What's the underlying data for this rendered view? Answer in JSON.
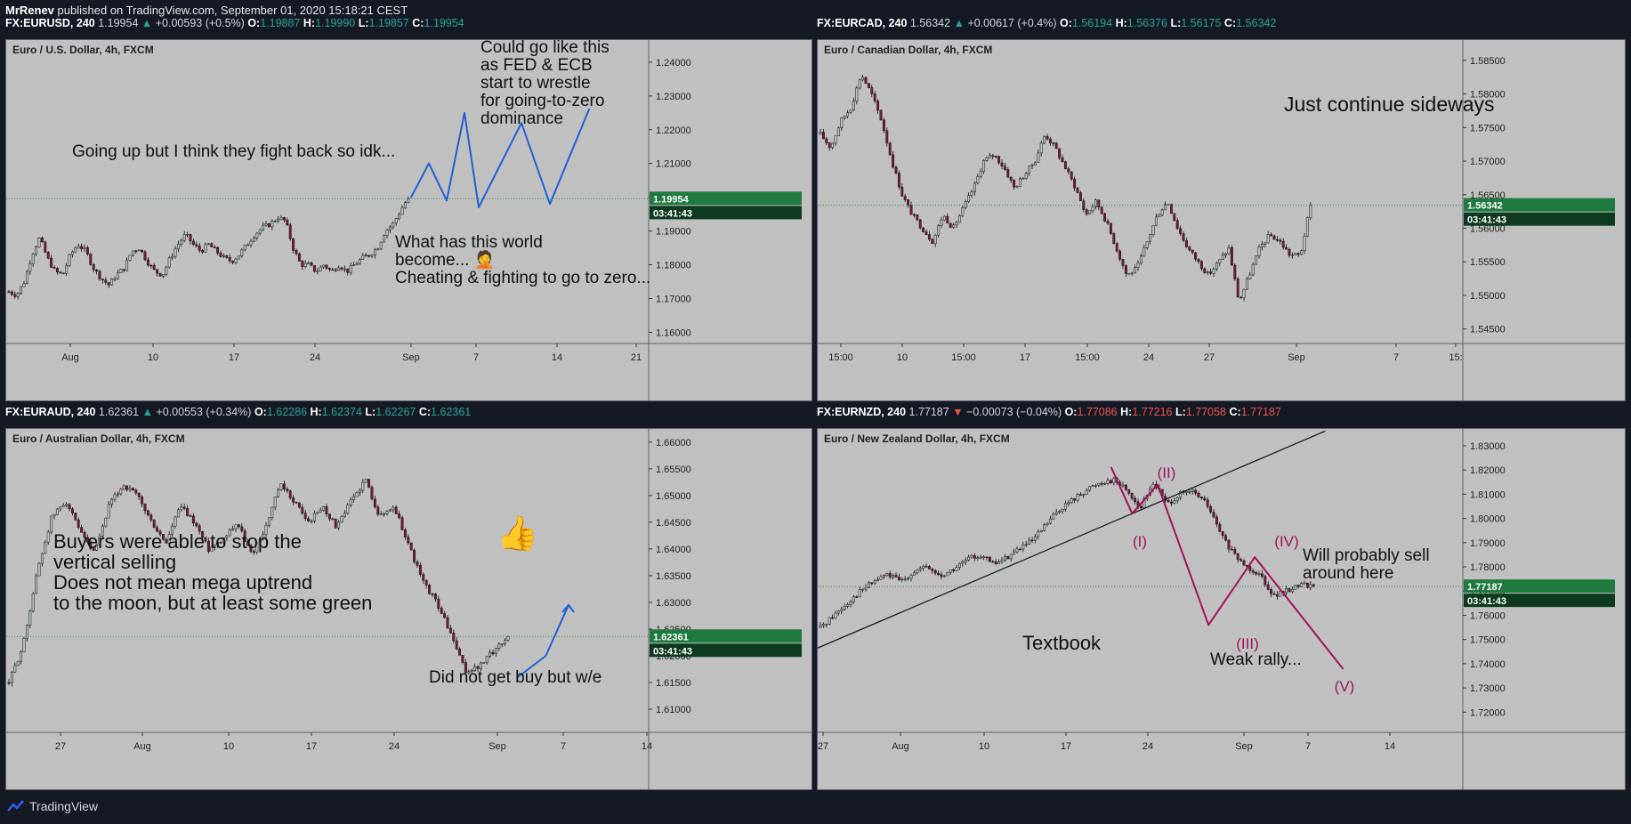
{
  "top": {
    "author": "MrRenev",
    "published_text": "published on TradingView.com, September 01, 2020 15:18:21 CEST"
  },
  "footer": {
    "brand": "TradingView",
    "logo_icon": "tradingview-cloud-icon"
  },
  "colors": {
    "up": "#26a69a",
    "down": "#ef5350",
    "plot_bg": "#c0c0c0",
    "price_badge": "#1e7a3e",
    "drawing_blue": "#1f5fd6",
    "drawing_magenta": "#a0135a"
  },
  "panels": [
    {
      "header": {
        "symbol": "FX:EURUSD, 240",
        "last": "1.19954",
        "dir": "up",
        "change": "+0.00593 (+0.5%)",
        "o": "1.19887",
        "h": "1.19990",
        "l": "1.19857",
        "c": "1.19954"
      },
      "title": "Euro / U.S. Dollar, 4h, FXCM",
      "price_label": "1.19954",
      "timer": "03:41:43",
      "annotations": [
        "Going up but I think they fight back so idk...",
        "Could go like this",
        "as FED & ECB",
        "start to wrestle",
        "for going-to-zero",
        "dominance",
        "What has this world",
        "become... 🤦",
        "Cheating & fighting to go to zero..."
      ]
    },
    {
      "header": {
        "symbol": "FX:EURCAD, 240",
        "last": "1.56342",
        "dir": "up",
        "change": "+0.00617 (+0.4%)",
        "o": "1.56194",
        "h": "1.56376",
        "l": "1.56175",
        "c": "1.56342"
      },
      "title": "Euro / Canadian Dollar, 4h, FXCM",
      "price_label": "1.56342",
      "timer": "03:41:43",
      "annotations": [
        "Just continue sideways"
      ]
    },
    {
      "header": {
        "symbol": "FX:EURAUD, 240",
        "last": "1.62361",
        "dir": "up",
        "change": "+0.00553 (+0.34%)",
        "o": "1.62286",
        "h": "1.62374",
        "l": "1.62267",
        "c": "1.62361"
      },
      "title": "Euro / Australian Dollar, 4h, FXCM",
      "price_label": "1.62361",
      "timer": "03:41:43",
      "annotations": [
        "Buyers were able to stop the",
        "vertical selling",
        "Does not mean mega uptrend",
        "to the moon, but at least some green",
        "Did not get buy but w/e"
      ],
      "emoji": "👍"
    },
    {
      "header": {
        "symbol": "FX:EURNZD, 240",
        "last": "1.77187",
        "dir": "down",
        "change": "−0.00073 (−0.04%)",
        "o": "1.77086",
        "h": "1.77216",
        "l": "1.77058",
        "c": "1.77187"
      },
      "title": "Euro / New Zealand Dollar, 4h, FXCM",
      "price_label": "1.77187",
      "timer": "03:41:43",
      "annotations": [
        "Textbook",
        "Will probably sell",
        "around here",
        "Weak rally..."
      ],
      "wave_labels": [
        "(I)",
        "(II)",
        "(III)",
        "(IV)",
        "(V)"
      ]
    }
  ],
  "chart_data": [
    {
      "type": "candlestick",
      "symbol": "EURUSD",
      "title": "Euro / U.S. Dollar, 4h, FXCM",
      "y_ticks": [
        "1.24000",
        "1.23000",
        "1.22000",
        "1.21000",
        "1.20000",
        "1.19000",
        "1.18000",
        "1.17000",
        "1.16000"
      ],
      "ylim": [
        1.158,
        1.2455
      ],
      "x_ticks": [
        "Aug",
        "10",
        "17",
        "24",
        "Sep",
        "7",
        "14",
        "21"
      ],
      "close_path": [
        1.172,
        1.171,
        1.175,
        1.183,
        1.188,
        1.182,
        1.178,
        1.177,
        1.183,
        1.186,
        1.184,
        1.179,
        1.176,
        1.174,
        1.177,
        1.179,
        1.184,
        1.185,
        1.181,
        1.178,
        1.177,
        1.182,
        1.186,
        1.189,
        1.186,
        1.184,
        1.186,
        1.184,
        1.182,
        1.181,
        1.183,
        1.186,
        1.189,
        1.191,
        1.192,
        1.194,
        1.193,
        1.185,
        1.18,
        1.18,
        1.178,
        1.18,
        1.178,
        1.18,
        1.178,
        1.18,
        1.182,
        1.183,
        1.185,
        1.19,
        1.192,
        1.196,
        1.2
      ],
      "last": 1.19954,
      "projection": [
        [
          0,
          1.2
        ],
        [
          0.1,
          1.21
        ],
        [
          0.2,
          1.199
        ],
        [
          0.3,
          1.225
        ],
        [
          0.38,
          1.197
        ],
        [
          0.62,
          1.222
        ],
        [
          0.78,
          1.198
        ],
        [
          1.0,
          1.226
        ]
      ]
    },
    {
      "type": "candlestick",
      "symbol": "EURCAD",
      "title": "Euro / Canadian Dollar, 4h, FXCM",
      "y_ticks": [
        "1.58500",
        "1.58000",
        "1.57500",
        "1.57000",
        "1.56500",
        "1.56000",
        "1.55500",
        "1.55000",
        "1.54500"
      ],
      "ylim": [
        1.5435,
        1.5875
      ],
      "x_ticks": [
        "15:00",
        "10",
        "15:00",
        "17",
        "15:00",
        "24",
        "27",
        "Sep",
        "7",
        "15:"
      ],
      "close_path": [
        1.574,
        1.572,
        1.576,
        1.578,
        1.583,
        1.58,
        1.576,
        1.57,
        1.565,
        1.562,
        1.56,
        1.558,
        1.562,
        1.56,
        1.563,
        1.566,
        1.57,
        1.571,
        1.569,
        1.566,
        1.568,
        1.57,
        1.574,
        1.572,
        1.569,
        1.566,
        1.562,
        1.564,
        1.561,
        1.557,
        1.553,
        1.554,
        1.558,
        1.562,
        1.564,
        1.56,
        1.557,
        1.555,
        1.553,
        1.555,
        1.557,
        1.549,
        1.553,
        1.557,
        1.559,
        1.558,
        1.556,
        1.556,
        1.5634
      ],
      "last": 1.56342
    },
    {
      "type": "candlestick",
      "symbol": "EURAUD",
      "title": "Euro / Australian Dollar, 4h, FXCM",
      "y_ticks": [
        "1.66000",
        "1.65500",
        "1.65000",
        "1.64500",
        "1.64000",
        "1.63500",
        "1.63000",
        "1.62500",
        "1.62000",
        "1.61500",
        "1.61000"
      ],
      "ylim": [
        1.6065,
        1.6618
      ],
      "x_ticks": [
        "27",
        "Aug",
        "10",
        "17",
        "24",
        "Sep",
        "7",
        "14"
      ],
      "close_path": [
        1.615,
        1.622,
        1.636,
        1.646,
        1.649,
        1.643,
        1.639,
        1.648,
        1.652,
        1.65,
        1.645,
        1.641,
        1.648,
        1.645,
        1.64,
        1.642,
        1.645,
        1.639,
        1.644,
        1.652,
        1.649,
        1.645,
        1.648,
        1.644,
        1.649,
        1.653,
        1.646,
        1.648,
        1.641,
        1.634,
        1.63,
        1.624,
        1.617,
        1.618,
        1.621,
        1.6236
      ],
      "last": 1.62361,
      "projection": [
        [
          0,
          1.616
        ],
        [
          0.55,
          1.62
        ],
        [
          1.0,
          1.6295
        ]
      ]
    },
    {
      "type": "candlestick",
      "symbol": "EURNZD",
      "title": "Euro / New Zealand Dollar, 4h, FXCM",
      "y_ticks": [
        "1.83000",
        "1.82000",
        "1.81000",
        "1.80000",
        "1.79000",
        "1.78000",
        "1.77000",
        "1.76000",
        "1.75000",
        "1.74000",
        "1.73000",
        "1.72000"
      ],
      "ylim": [
        1.7135,
        1.8355
      ],
      "x_ticks": [
        "27",
        "Aug",
        "10",
        "17",
        "24",
        "Sep",
        "7",
        "14"
      ],
      "close_path": [
        1.755,
        1.76,
        1.765,
        1.77,
        1.774,
        1.777,
        1.774,
        1.778,
        1.78,
        1.776,
        1.779,
        1.783,
        1.785,
        1.781,
        1.784,
        1.788,
        1.791,
        1.798,
        1.804,
        1.808,
        1.812,
        1.815,
        1.816,
        1.812,
        1.804,
        1.815,
        1.806,
        1.81,
        1.811,
        1.806,
        1.794,
        1.785,
        1.78,
        1.777,
        1.768,
        1.77,
        1.773,
        1.772
      ],
      "last": 1.77187,
      "trendline": [
        [
          0,
          1.7465
        ],
        [
          1.0,
          1.836
        ]
      ],
      "wave_projection": [
        [
          0,
          1.821
        ],
        [
          0.09,
          1.802
        ],
        [
          0.2,
          1.814
        ],
        [
          0.42,
          1.756
        ],
        [
          0.62,
          1.784
        ],
        [
          1.0,
          1.738
        ]
      ]
    }
  ]
}
